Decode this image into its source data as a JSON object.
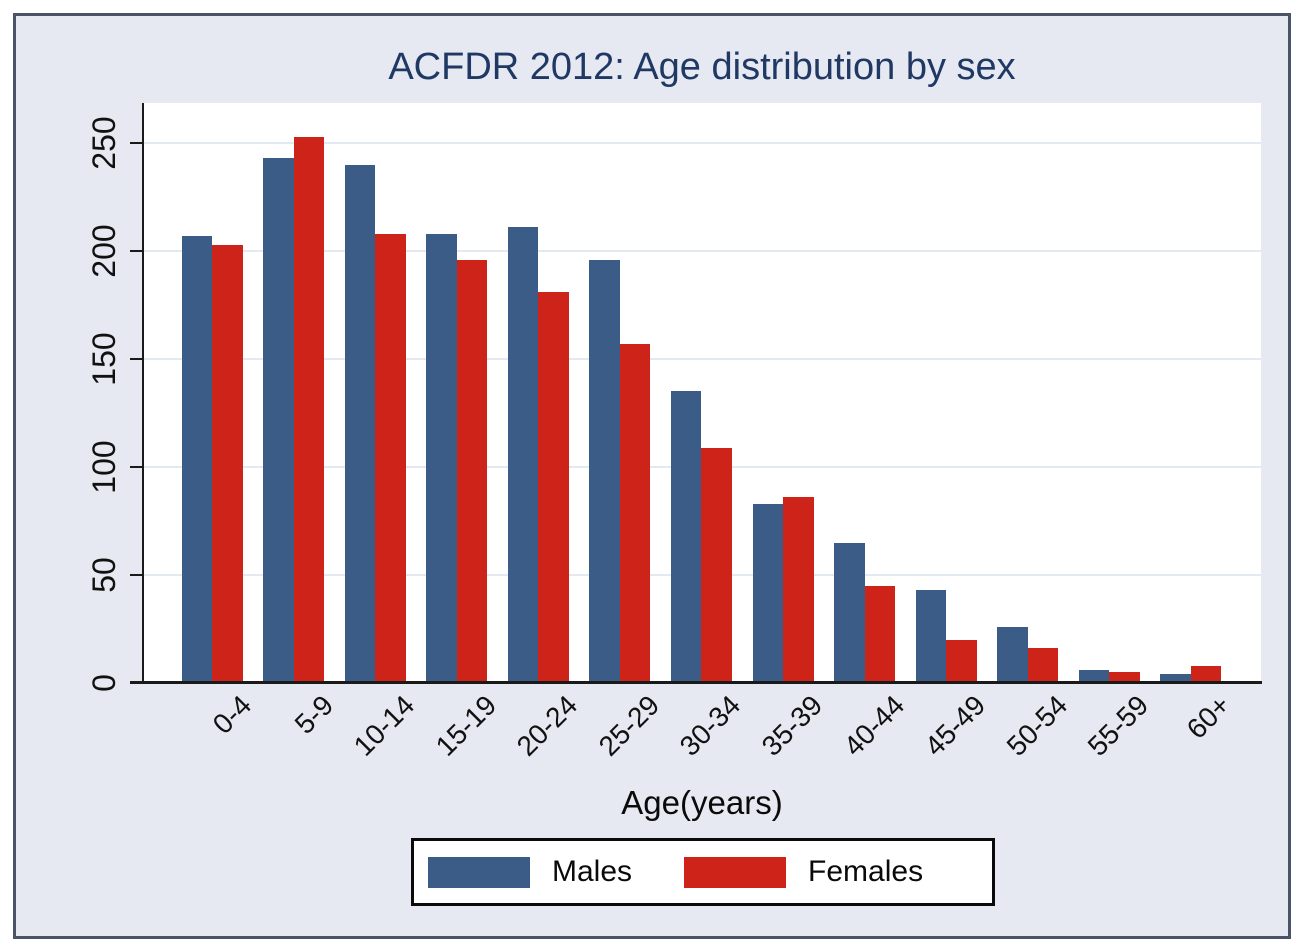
{
  "figure": {
    "title_color": "#1F3864",
    "background_color": "#E6E9F1",
    "border_color": "#4A5368",
    "plot_background": "#ffffff",
    "gridline_color": "#E3E9F0"
  },
  "chart_data": {
    "type": "bar",
    "title": "ACFDR 2012: Age distribution by sex",
    "xlabel": "Age(years)",
    "ylabel": "",
    "categories": [
      "0-4",
      "5-9",
      "10-14",
      "15-19",
      "20-24",
      "25-29",
      "30-34",
      "35-39",
      "40-44",
      "45-49",
      "50-54",
      "55-59",
      "60+"
    ],
    "series": [
      {
        "name": "Males",
        "color": "#3B5C87",
        "values": [
          207,
          243,
          240,
          208,
          211,
          196,
          135,
          83,
          65,
          43,
          26,
          6,
          4
        ]
      },
      {
        "name": "Females",
        "color": "#CE2318",
        "values": [
          203,
          253,
          208,
          196,
          181,
          157,
          109,
          86,
          45,
          20,
          16,
          5,
          8
        ]
      }
    ],
    "y_ticks": [
      0,
      50,
      100,
      150,
      200,
      250
    ],
    "ylim": [
      0,
      268
    ],
    "grid": "horizontal-only",
    "x_tick_angle": 45,
    "y_tick_angle": 90,
    "legend_position": "bottom-center"
  },
  "legend": {
    "items": [
      {
        "label": "Males",
        "color": "#3B5C87"
      },
      {
        "label": "Females",
        "color": "#CE2318"
      }
    ]
  }
}
